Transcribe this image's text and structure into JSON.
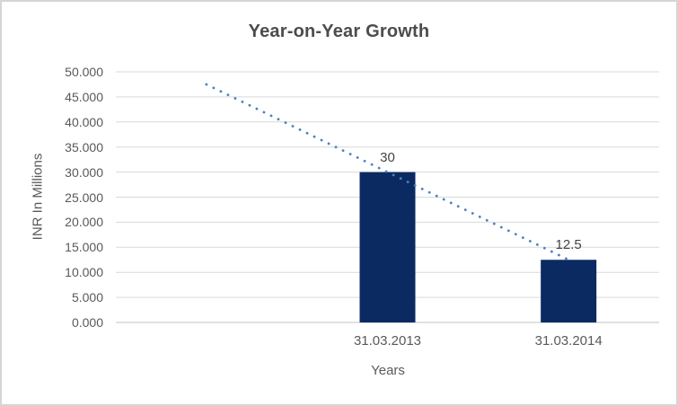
{
  "chart_data": {
    "type": "bar",
    "title": "Year-on-Year Growth",
    "xlabel": "Years",
    "ylabel": "INR In Millions",
    "categories": [
      "31.03.2013",
      "31.03.2014"
    ],
    "values": [
      30,
      12.5
    ],
    "data_labels": [
      "30",
      "12.5"
    ],
    "ylim": [
      0,
      50
    ],
    "ytick_step": 5,
    "ytick_labels": [
      "0.000",
      "5.000",
      "10.000",
      "15.000",
      "20.000",
      "25.000",
      "30.000",
      "35.000",
      "40.000",
      "45.000",
      "50.000"
    ],
    "grid": true,
    "legend": "none",
    "colors": {
      "bar": "#0b2a62",
      "trendline": "#4a82c4",
      "gridline": "#d9d9d9",
      "axis_line": "#c3c3c3",
      "tick_text": "#595959",
      "title_text": "#4c4c4c",
      "data_label_text": "#444444"
    },
    "trendline": {
      "type": "linear",
      "style": "dotted",
      "points": [
        {
          "slot": 0,
          "value": 47.5
        },
        {
          "slot": 2,
          "value": 12.5
        }
      ]
    },
    "layout_hints": {
      "slots": 3,
      "category_slot_indexes": [
        1,
        2
      ],
      "legend_position": "none"
    }
  }
}
